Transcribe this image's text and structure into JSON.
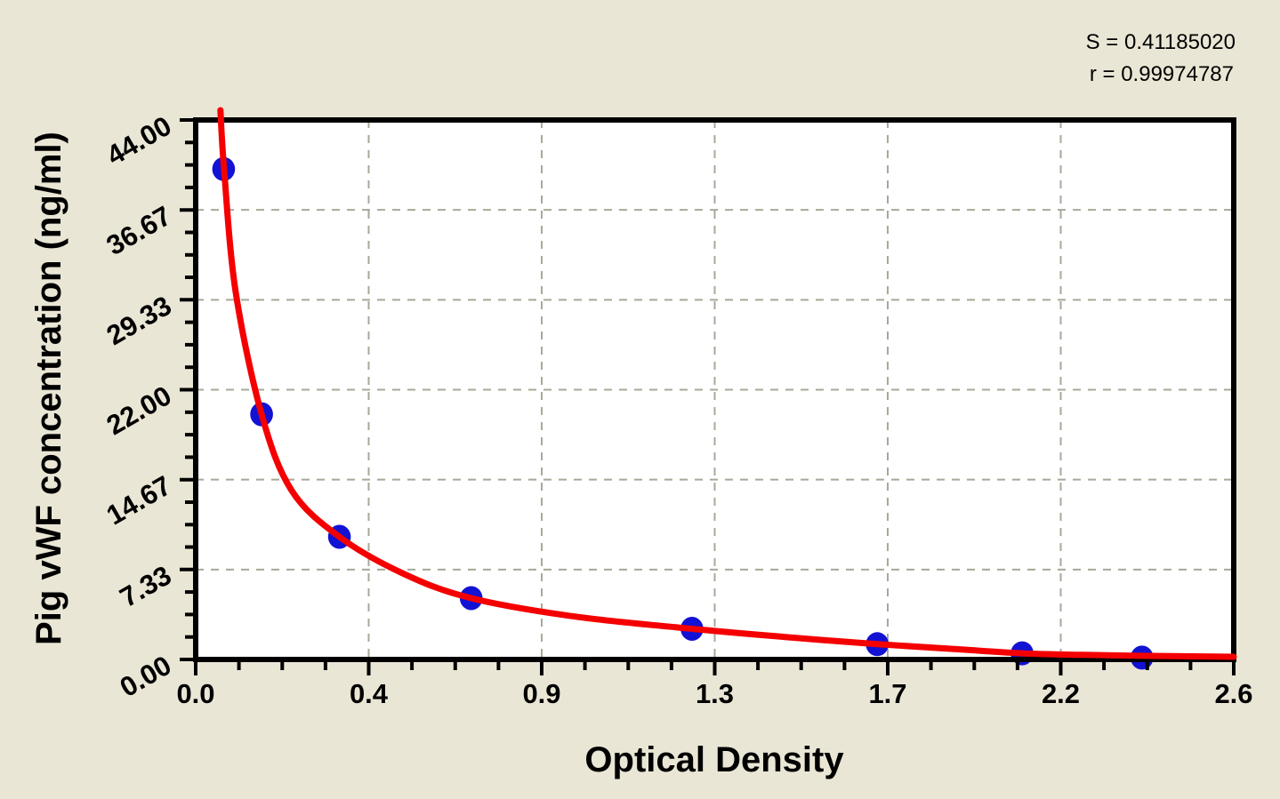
{
  "stats": {
    "s": "S = 0.41185020",
    "r": "r = 0.99974787"
  },
  "chart_data": {
    "type": "scatter",
    "title": "",
    "xlabel": "Optical Density",
    "ylabel": "Pig vWF concentration (ng/ml)",
    "xlim": [
      0,
      2.6
    ],
    "ylim": [
      0,
      44
    ],
    "x_tick_labels": [
      "0.0",
      "0.4",
      "0.9",
      "1.3",
      "1.7",
      "2.2",
      "2.6"
    ],
    "x_tick_values": [
      0,
      0.4333,
      0.8667,
      1.3,
      1.7333,
      2.1667,
      2.6
    ],
    "y_tick_labels": [
      "0.00",
      "7.33",
      "14.67",
      "22.00",
      "29.33",
      "36.67",
      "44.00"
    ],
    "y_tick_values": [
      0,
      7.333,
      14.667,
      22,
      29.333,
      36.667,
      44
    ],
    "minor_ticks_per_interval": 3,
    "grid": "dashed-major",
    "legend": "none",
    "annotations": [
      "S = 0.41185020",
      "r = 0.99974787"
    ],
    "series": [
      {
        "name": "standard-points",
        "type": "scatter",
        "marker": "circle",
        "color": "#1212d4",
        "points": [
          [
            0.07,
            40
          ],
          [
            0.165,
            20
          ],
          [
            0.36,
            10
          ],
          [
            0.69,
            5
          ],
          [
            1.243,
            2.5
          ],
          [
            1.707,
            1.25
          ],
          [
            2.07,
            0.5
          ],
          [
            2.37,
            0.15
          ]
        ]
      },
      {
        "name": "fitted-curve",
        "type": "line",
        "color": "#f40000",
        "points": [
          [
            0.062,
            44.8
          ],
          [
            0.071,
            40.0
          ],
          [
            0.1,
            30.0
          ],
          [
            0.165,
            20.0
          ],
          [
            0.24,
            13.8
          ],
          [
            0.36,
            10.0
          ],
          [
            0.52,
            7.0
          ],
          [
            0.69,
            5.0
          ],
          [
            0.95,
            3.5
          ],
          [
            1.243,
            2.5
          ],
          [
            1.47,
            1.85
          ],
          [
            1.707,
            1.25
          ],
          [
            1.9,
            0.85
          ],
          [
            2.07,
            0.5
          ],
          [
            2.22,
            0.38
          ],
          [
            2.37,
            0.3
          ],
          [
            2.6,
            0.22
          ]
        ]
      }
    ],
    "colors": {
      "background": "#eae6d5",
      "plot_background": "#ffffff",
      "axis": "#000000",
      "grid": "#a8a89a",
      "point": "#1212d4",
      "curve": "#f40000"
    }
  }
}
